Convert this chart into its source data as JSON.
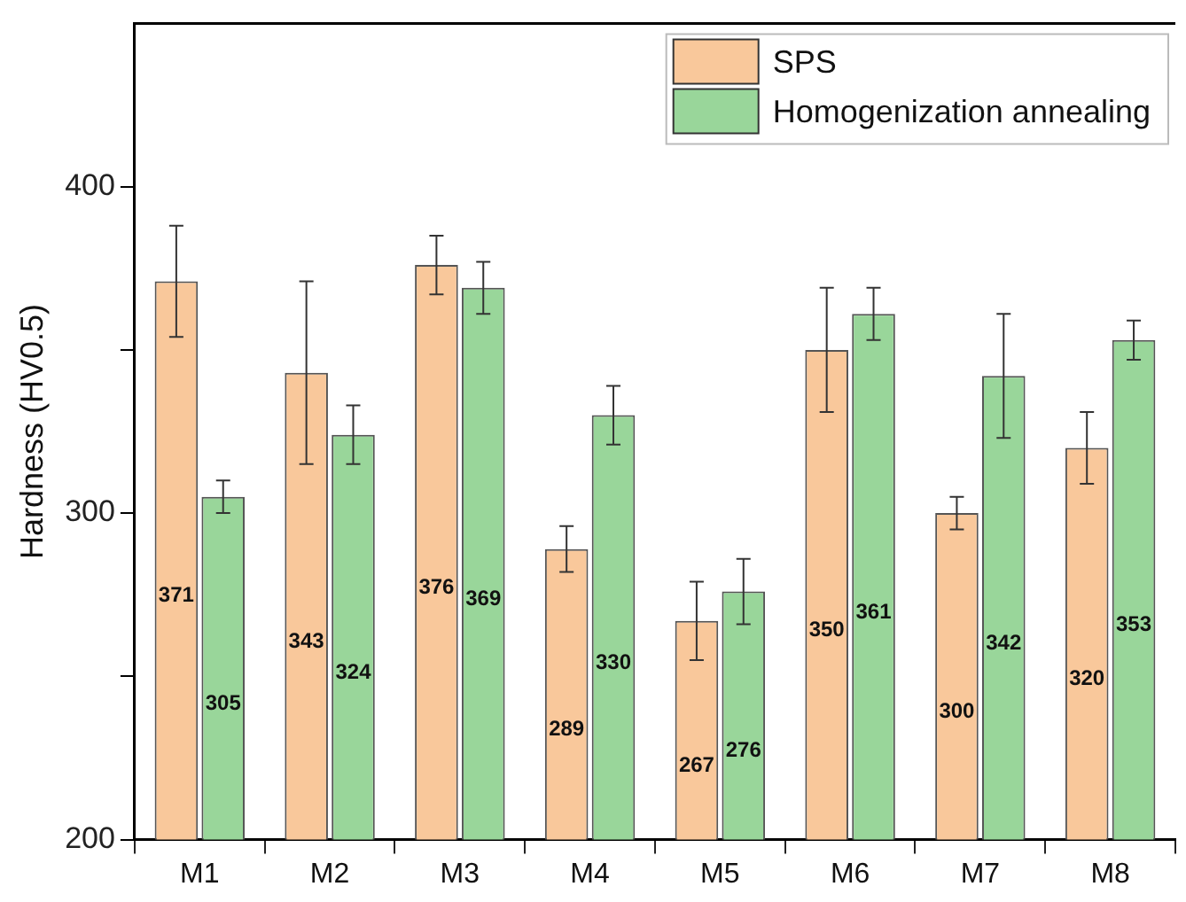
{
  "chart_data": {
    "type": "bar",
    "ylabel": "Hardness (HV0.5)",
    "categories": [
      "M1",
      "M2",
      "M3",
      "M4",
      "M5",
      "M6",
      "M7",
      "M8"
    ],
    "series": [
      {
        "name": "SPS",
        "color": "#f9c89b",
        "values": [
          371,
          343,
          376,
          289,
          267,
          350,
          300,
          320
        ],
        "errors": [
          17,
          28,
          9,
          7,
          12,
          19,
          5,
          11
        ]
      },
      {
        "name": "Homogenization annealing",
        "color": "#99d69a",
        "values": [
          305,
          324,
          369,
          330,
          276,
          361,
          342,
          353
        ],
        "errors": [
          5,
          9,
          8,
          9,
          10,
          8,
          19,
          6
        ]
      }
    ],
    "ylim": [
      200,
      450
    ],
    "yticks": [
      200,
      {
        "value": 250,
        "label": null
      },
      300,
      {
        "value": 350,
        "label": null
      },
      400
    ],
    "grid": false,
    "legend": "top right",
    "data_labels": true
  }
}
